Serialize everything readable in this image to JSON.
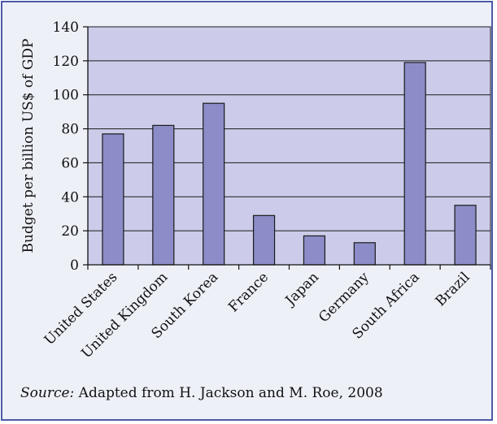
{
  "chart_data": {
    "type": "bar",
    "categories": [
      "United States",
      "United Kingdom",
      "South Korea",
      "France",
      "Japan",
      "Germany",
      "South Africa",
      "Brazil"
    ],
    "values": [
      77,
      82,
      95,
      29,
      17,
      13,
      119,
      35
    ],
    "ylabel": "Budget per billion US$ of GDP",
    "ylim": [
      0,
      140
    ],
    "yticks": [
      0,
      20,
      40,
      60,
      80,
      100,
      120,
      140
    ],
    "grid": true,
    "colors": {
      "plot_background": "#ccccea",
      "bar_fill": "#8c8cc8",
      "bar_stroke": "#1a1a1a",
      "grid": "#1a1a1a"
    }
  },
  "source": {
    "label": "Source:",
    "text": " Adapted from H. Jackson and M. Roe, 2008"
  }
}
